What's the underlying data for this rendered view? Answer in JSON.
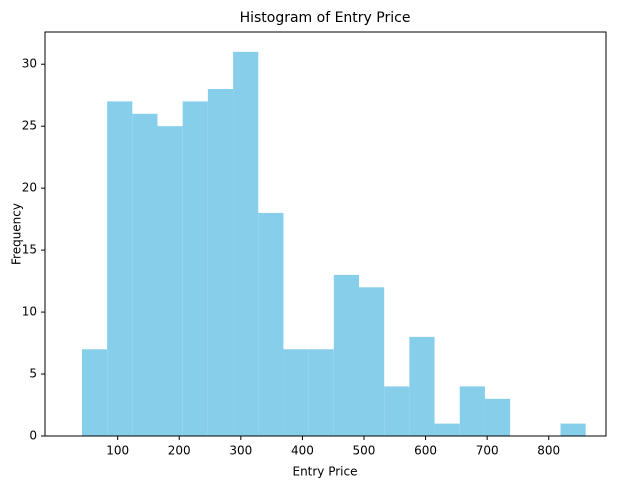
{
  "chart_data": {
    "type": "histogram",
    "title": "Histogram of Entry Price",
    "x_label": "Entry Price",
    "y_label": "Frequency",
    "bins": [
      42,
      82.9,
      123.8,
      164.7,
      205.6,
      246.5,
      287.4,
      328.3,
      369.2,
      410.1,
      451,
      491.9,
      532.8,
      573.7,
      614.6,
      655.5,
      696.4,
      737.3,
      778.2,
      819.1,
      860
    ],
    "values": [
      7,
      27,
      26,
      25,
      27,
      28,
      31,
      18,
      7,
      7,
      13,
      12,
      4,
      8,
      1,
      4,
      3,
      0,
      0,
      1
    ],
    "color": "#87ceeb",
    "xlim": [
      -18,
      893
    ],
    "xticks": [
      100,
      200,
      300,
      400,
      500,
      600,
      700,
      800
    ],
    "ylim": [
      0,
      32.6
    ],
    "yticks": [
      0,
      5,
      10,
      15,
      20,
      25,
      30
    ]
  }
}
